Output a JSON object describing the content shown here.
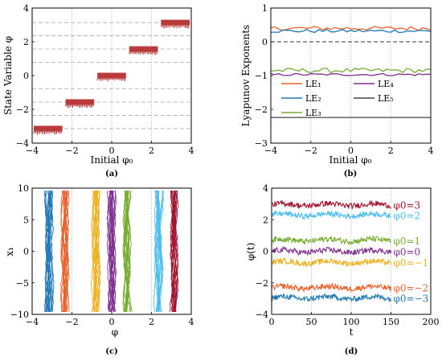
{
  "chart_data": [
    {
      "id": "a",
      "type": "scatter",
      "caption": "(a)",
      "xlabel": "Initial φ₀",
      "ylabel": "State Variable φ",
      "xlim": [
        -4,
        4
      ],
      "ylim": [
        -4,
        4
      ],
      "xticks": [
        "−4",
        "−2",
        "0",
        "2",
        "4"
      ],
      "yticks": [
        "−4",
        "−2",
        "0",
        "2",
        "4"
      ],
      "grid": "vertical dotted at x ticks; horizontal dashed at equilibrium levels",
      "color": "#b83a3a",
      "points": [
        {
          "x_from": -4.0,
          "x_to": -2.4,
          "y": -3.14
        },
        {
          "x_from": -2.4,
          "x_to": -0.8,
          "y": -1.57
        },
        {
          "x_from": -0.8,
          "x_to": 0.8,
          "y": 0.0
        },
        {
          "x_from": 0.8,
          "x_to": 2.4,
          "y": 1.57
        },
        {
          "x_from": 2.4,
          "x_to": 4.0,
          "y": 3.14
        }
      ],
      "equilibrium_lines": [
        -3.14,
        -2.36,
        -1.57,
        -0.79,
        0.79,
        1.57,
        2.36,
        3.14
      ]
    },
    {
      "id": "b",
      "type": "line",
      "caption": "(b)",
      "xlabel": "Initial φ₀",
      "ylabel": "Lyapunov Exponents",
      "xlim": [
        -4,
        4
      ],
      "ylim": [
        -3,
        1
      ],
      "xticks": [
        "−4",
        "−2",
        "0",
        "2",
        "4"
      ],
      "yticks": [
        "−3",
        "−2",
        "−1",
        "0",
        "1"
      ],
      "grid": "vertical dotted at x ticks",
      "legend_position": "inside, lower-left",
      "series": [
        {
          "name": "LE₁",
          "color": "#e8622c",
          "mean": 0.4
        },
        {
          "name": "LE₂",
          "color": "#1f77b4",
          "mean": 0.32
        },
        {
          "name": "LE₃",
          "color": "#77ac30",
          "mean": -0.85
        },
        {
          "name": "LE₄",
          "color": "#7e2f8e",
          "mean": -0.97
        },
        {
          "name": "LE₅",
          "color": "#444444",
          "mean": -2.24
        }
      ],
      "zero_line": 0
    },
    {
      "id": "c",
      "type": "scatter",
      "caption": "(c)",
      "xlabel": "φ",
      "ylabel": "x₁",
      "xlim": [
        -4,
        4
      ],
      "ylim": [
        -10,
        10
      ],
      "xticks": [
        "−4",
        "−2",
        "0",
        "2",
        "4"
      ],
      "yticks": [
        "−10",
        "−5",
        "0",
        "5",
        "10"
      ],
      "grid": "vertical dotted at x ticks",
      "attractors": [
        {
          "center": -3.14,
          "color": "#1f77b4"
        },
        {
          "center": -2.36,
          "color": "#e8622c"
        },
        {
          "center": -0.79,
          "color": "#edb120"
        },
        {
          "center": 0.0,
          "color": "#7e2f8e"
        },
        {
          "center": 0.79,
          "color": "#77ac30"
        },
        {
          "center": 2.36,
          "color": "#4dbeee"
        },
        {
          "center": 3.14,
          "color": "#a2142f"
        }
      ]
    },
    {
      "id": "d",
      "type": "line",
      "caption": "(d)",
      "xlabel": "t",
      "ylabel": "φ(t)",
      "xlim": [
        0,
        200
      ],
      "ylim": [
        -4,
        4
      ],
      "xticks": [
        "0",
        "50",
        "100",
        "150",
        "200"
      ],
      "yticks": [
        "−4",
        "−2",
        "0",
        "2",
        "4"
      ],
      "grid": "vertical dotted at x ticks",
      "t_range": [
        0,
        150
      ],
      "series": [
        {
          "label": "φ0=3",
          "color": "#a2142f",
          "mean": 2.95
        },
        {
          "label": "φ0=2",
          "color": "#4dbeee",
          "mean": 2.3
        },
        {
          "label": "φ0=1",
          "color": "#77ac30",
          "mean": 0.7
        },
        {
          "label": "φ0=0",
          "color": "#7e2f8e",
          "mean": 0.0
        },
        {
          "label": "φ0=−1",
          "color": "#edb120",
          "mean": -0.7
        },
        {
          "label": "φ0=−2",
          "color": "#e8622c",
          "mean": -2.3
        },
        {
          "label": "φ0=−3",
          "color": "#1f77b4",
          "mean": -2.95
        }
      ]
    }
  ]
}
